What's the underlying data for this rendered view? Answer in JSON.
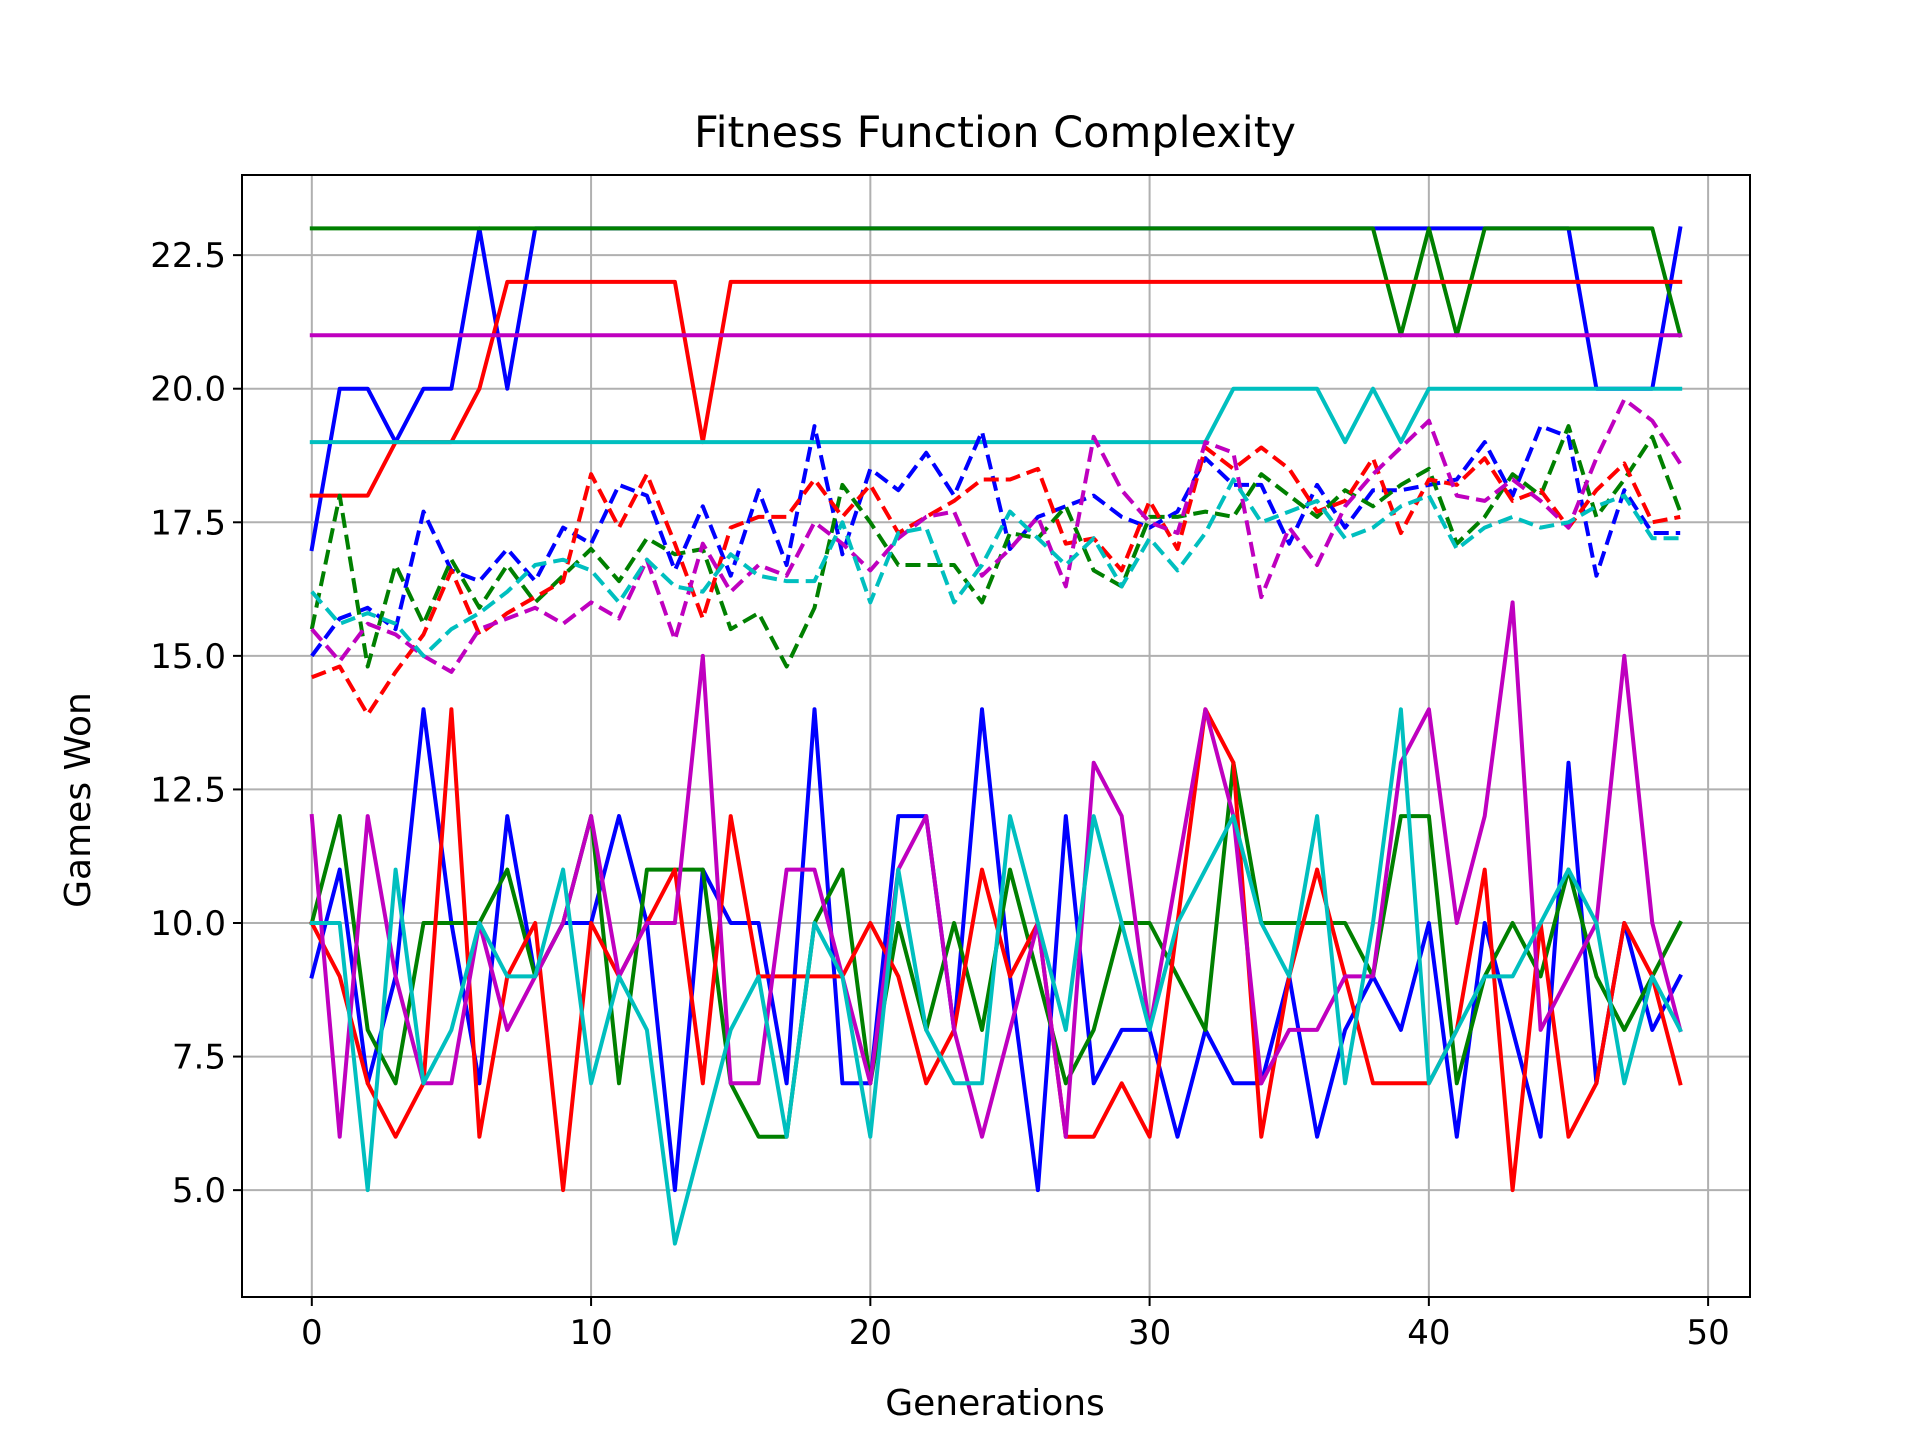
{
  "chart_data": {
    "type": "line",
    "title": "Fitness Function Complexity",
    "xlabel": "Generations",
    "ylabel": "Games Won",
    "xlim": [
      -2.5,
      51.5
    ],
    "ylim": [
      3,
      24
    ],
    "xticks": [
      0,
      10,
      20,
      30,
      40,
      50
    ],
    "xtick_labels": [
      "0",
      "10",
      "20",
      "30",
      "40",
      "50"
    ],
    "yticks": [
      5.0,
      7.5,
      10.0,
      12.5,
      15.0,
      17.5,
      20.0,
      22.5
    ],
    "ytick_labels": [
      "5.0",
      "7.5",
      "10.0",
      "12.5",
      "15.0",
      "17.5",
      "20.0",
      "22.5"
    ],
    "grid": true,
    "x": [
      0,
      1,
      2,
      3,
      4,
      5,
      6,
      7,
      8,
      9,
      10,
      11,
      12,
      13,
      14,
      15,
      16,
      17,
      18,
      19,
      20,
      21,
      22,
      23,
      24,
      25,
      26,
      27,
      28,
      29,
      30,
      31,
      32,
      33,
      34,
      35,
      36,
      37,
      38,
      39,
      40,
      41,
      42,
      43,
      44,
      45,
      46,
      47,
      48,
      49
    ],
    "series": [
      {
        "color": "#0000ff",
        "style": "solid",
        "values": [
          17,
          20,
          20,
          19,
          20,
          20,
          23,
          20,
          23,
          23,
          23,
          23,
          23,
          23,
          23,
          23,
          23,
          23,
          23,
          23,
          23,
          23,
          23,
          23,
          23,
          23,
          23,
          23,
          23,
          23,
          23,
          23,
          23,
          23,
          23,
          23,
          23,
          23,
          23,
          23,
          23,
          23,
          23,
          23,
          23,
          23,
          20,
          20,
          20,
          23
        ]
      },
      {
        "color": "#008000",
        "style": "solid",
        "values": [
          23,
          23,
          23,
          23,
          23,
          23,
          23,
          23,
          23,
          23,
          23,
          23,
          23,
          23,
          23,
          23,
          23,
          23,
          23,
          23,
          23,
          23,
          23,
          23,
          23,
          23,
          23,
          23,
          23,
          23,
          23,
          23,
          23,
          23,
          23,
          23,
          23,
          23,
          23,
          21,
          23,
          21,
          23,
          23,
          23,
          23,
          23,
          23,
          23,
          21
        ]
      },
      {
        "color": "#ff0000",
        "style": "solid",
        "values": [
          18,
          18,
          18,
          19,
          19,
          19,
          20,
          22,
          22,
          22,
          22,
          22,
          22,
          22,
          19,
          22,
          22,
          22,
          22,
          22,
          22,
          22,
          22,
          22,
          22,
          22,
          22,
          22,
          22,
          22,
          22,
          22,
          22,
          22,
          22,
          22,
          22,
          22,
          22,
          22,
          22,
          22,
          22,
          22,
          22,
          22,
          22,
          22,
          22,
          22
        ]
      },
      {
        "color": "#bf00bf",
        "style": "solid",
        "values": [
          21,
          21,
          21,
          21,
          21,
          21,
          21,
          21,
          21,
          21,
          21,
          21,
          21,
          21,
          21,
          21,
          21,
          21,
          21,
          21,
          21,
          21,
          21,
          21,
          21,
          21,
          21,
          21,
          21,
          21,
          21,
          21,
          21,
          21,
          21,
          21,
          21,
          21,
          21,
          21,
          21,
          21,
          21,
          21,
          21,
          21,
          21,
          21,
          21,
          21
        ]
      },
      {
        "color": "#00bfbf",
        "style": "solid",
        "values": [
          19,
          19,
          19,
          19,
          19,
          19,
          19,
          19,
          19,
          19,
          19,
          19,
          19,
          19,
          19,
          19,
          19,
          19,
          19,
          19,
          19,
          19,
          19,
          19,
          19,
          19,
          19,
          19,
          19,
          19,
          19,
          19,
          19,
          20,
          20,
          20,
          20,
          19,
          20,
          19,
          20,
          20,
          20,
          20,
          20,
          20,
          20,
          20,
          20,
          20
        ]
      },
      {
        "color": "#0000ff",
        "style": "dashed",
        "values": [
          15.0,
          15.7,
          15.9,
          15.5,
          17.7,
          16.6,
          16.4,
          17.0,
          16.4,
          17.4,
          17.1,
          18.2,
          18.0,
          16.6,
          17.8,
          16.5,
          18.1,
          16.7,
          19.3,
          16.9,
          18.5,
          18.1,
          18.8,
          18.0,
          19.2,
          17.0,
          17.6,
          17.8,
          18.0,
          17.6,
          17.4,
          17.7,
          18.7,
          18.2,
          18.2,
          17.1,
          18.2,
          17.4,
          18.1,
          18.1,
          18.2,
          18.3,
          19.0,
          18.0,
          19.3,
          19.1,
          16.5,
          18.1,
          17.3,
          17.3
        ]
      },
      {
        "color": "#008000",
        "style": "dashed",
        "values": [
          15.5,
          18.0,
          14.8,
          16.7,
          15.6,
          16.8,
          15.9,
          16.7,
          16.0,
          16.5,
          17.0,
          16.4,
          17.2,
          16.9,
          17.0,
          15.5,
          15.8,
          14.8,
          15.9,
          18.2,
          17.5,
          16.7,
          16.7,
          16.7,
          16.0,
          17.3,
          17.2,
          17.8,
          16.6,
          16.3,
          17.6,
          17.6,
          17.7,
          17.6,
          18.4,
          18.0,
          17.6,
          18.1,
          17.8,
          18.2,
          18.5,
          17.1,
          17.6,
          18.4,
          18.0,
          19.3,
          17.6,
          18.3,
          19.1,
          17.7
        ]
      },
      {
        "color": "#ff0000",
        "style": "dashed",
        "values": [
          14.6,
          14.8,
          13.9,
          14.7,
          15.4,
          16.6,
          15.4,
          15.8,
          16.1,
          16.4,
          18.4,
          17.4,
          18.4,
          17.1,
          15.7,
          17.4,
          17.6,
          17.6,
          18.3,
          17.6,
          18.2,
          17.3,
          17.6,
          17.9,
          18.3,
          18.3,
          18.5,
          17.1,
          17.2,
          16.6,
          17.9,
          17.0,
          18.9,
          18.5,
          18.9,
          18.5,
          17.7,
          17.9,
          18.7,
          17.3,
          18.3,
          18.2,
          18.7,
          17.9,
          18.1,
          17.4,
          18.1,
          18.6,
          17.5,
          17.6
        ]
      },
      {
        "color": "#bf00bf",
        "style": "dashed",
        "values": [
          15.5,
          14.9,
          15.6,
          15.4,
          15.0,
          14.7,
          15.5,
          15.7,
          15.9,
          15.6,
          16.0,
          15.7,
          16.8,
          15.3,
          17.1,
          16.2,
          16.7,
          16.5,
          17.5,
          17.1,
          16.6,
          17.2,
          17.6,
          17.7,
          16.5,
          17.0,
          17.6,
          16.3,
          19.1,
          18.1,
          17.5,
          17.3,
          19.0,
          18.8,
          16.1,
          17.4,
          16.7,
          17.8,
          18.4,
          18.9,
          19.4,
          18.0,
          17.9,
          18.3,
          17.9,
          17.4,
          18.7,
          19.8,
          19.4,
          18.6
        ]
      },
      {
        "color": "#00bfbf",
        "style": "dashed",
        "values": [
          16.2,
          15.6,
          15.8,
          15.6,
          15.0,
          15.5,
          15.8,
          16.2,
          16.7,
          16.8,
          16.6,
          16.0,
          16.8,
          16.3,
          16.2,
          16.9,
          16.5,
          16.4,
          16.4,
          17.5,
          16.0,
          17.3,
          17.4,
          16.0,
          16.7,
          17.7,
          17.2,
          16.7,
          17.2,
          16.3,
          17.2,
          16.6,
          17.3,
          18.3,
          17.5,
          17.7,
          17.9,
          17.2,
          17.4,
          17.8,
          18.0,
          17.0,
          17.4,
          17.6,
          17.4,
          17.5,
          17.8,
          18.0,
          17.2,
          17.2
        ]
      },
      {
        "color": "#0000ff",
        "style": "solid",
        "values": [
          9,
          11,
          7,
          9,
          14,
          10,
          7,
          12,
          9,
          10,
          10,
          12,
          10,
          5,
          11,
          10,
          10,
          7,
          14,
          7,
          7,
          12,
          12,
          8,
          14,
          9,
          5,
          12,
          7,
          8,
          8,
          6,
          8,
          7,
          7,
          9,
          6,
          8,
          9,
          8,
          10,
          6,
          10,
          8,
          6,
          13,
          7,
          10,
          8,
          9
        ]
      },
      {
        "color": "#008000",
        "style": "solid",
        "values": [
          10,
          12,
          8,
          7,
          10,
          10,
          10,
          11,
          9,
          10,
          12,
          7,
          11,
          11,
          11,
          7,
          6,
          6,
          10,
          11,
          7,
          10,
          8,
          10,
          8,
          11,
          9,
          7,
          8,
          10,
          10,
          9,
          8,
          13,
          10,
          10,
          10,
          10,
          9,
          12,
          12,
          7,
          9,
          10,
          9,
          11,
          9,
          8,
          9,
          10
        ]
      },
      {
        "color": "#ff0000",
        "style": "solid",
        "values": [
          10,
          9,
          7,
          6,
          7,
          14,
          6,
          9,
          10,
          5,
          10,
          9,
          10,
          11,
          7,
          12,
          9,
          9,
          9,
          9,
          10,
          9,
          7,
          8,
          11,
          9,
          10,
          6,
          6,
          7,
          6,
          10,
          14,
          13,
          6,
          9,
          11,
          9,
          7,
          7,
          7,
          8,
          11,
          5,
          10,
          6,
          7,
          10,
          9,
          7
        ]
      },
      {
        "color": "#bf00bf",
        "style": "solid",
        "values": [
          12,
          6,
          12,
          9,
          7,
          7,
          10,
          8,
          9,
          10,
          12,
          9,
          10,
          10,
          15,
          7,
          7,
          11,
          11,
          9,
          7,
          11,
          12,
          8,
          6,
          8,
          10,
          6,
          13,
          12,
          8,
          11,
          14,
          12,
          7,
          8,
          8,
          9,
          9,
          13,
          14,
          10,
          12,
          16,
          8,
          9,
          10,
          15,
          10,
          8
        ]
      },
      {
        "color": "#00bfbf",
        "style": "solid",
        "values": [
          10,
          10,
          5,
          11,
          7,
          8,
          10,
          9,
          9,
          11,
          7,
          9,
          8,
          4,
          6,
          8,
          9,
          6,
          10,
          9,
          6,
          11,
          8,
          7,
          7,
          12,
          10,
          8,
          12,
          10,
          8,
          10,
          11,
          12,
          10,
          9,
          12,
          7,
          10,
          14,
          7,
          8,
          9,
          9,
          10,
          11,
          10,
          7,
          9,
          8
        ]
      }
    ]
  }
}
